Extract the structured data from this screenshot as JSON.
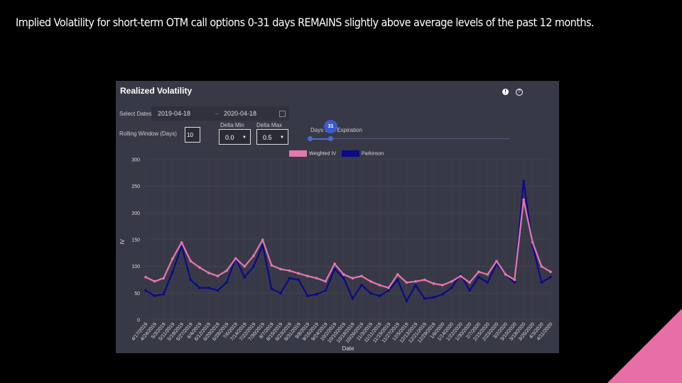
{
  "slide": {
    "title": "Implied Volatility for short-term OTM call options 0-31 days REMAINS slightly above average levels of the past 12 months."
  },
  "panel": {
    "title": "Realized Volatility",
    "info_icon": "info-icon",
    "help_icon": "question-icon",
    "select_dates_label": "Select Dates",
    "start_date": "2019-04-18",
    "end_date": "2020-04-18",
    "rolling_window_label": "Rolling Window (Days)",
    "rolling_window_value": "10",
    "delta_min_label": "Delta Min",
    "delta_min_value": "0.0",
    "delta_max_label": "Delta Max",
    "delta_max_value": "0.5",
    "days_expiration_label": "Days until Expiration",
    "days_expiration_value": "31"
  },
  "colors": {
    "weighted_iv": "#e877ad",
    "parkinson": "#0a0a8c",
    "panel_bg": "#383947",
    "accent": "#3d5bd0"
  },
  "chart_data": {
    "type": "line",
    "xlabel": "Date",
    "ylabel": "IV",
    "ylim": [
      0,
      300
    ],
    "yticks": [
      0,
      50,
      100,
      150,
      200,
      250,
      300
    ],
    "legend": [
      "Weighted IV",
      "Parkinson"
    ],
    "legend_position": "top-center",
    "grid": true,
    "x": [
      "4/17/2019",
      "4/24/2019",
      "5/3/2019",
      "5/11/2019",
      "5/19/2019",
      "5/27/2019",
      "6/4/2019",
      "6/12/2019",
      "6/20/2019",
      "6/28/2019",
      "7/6/2019",
      "7/14/2019",
      "7/22/2019",
      "7/30/2019",
      "8/7/2019",
      "8/15/2019",
      "8/23/2019",
      "8/31/2019",
      "9/8/2019",
      "9/16/2019",
      "9/24/2019",
      "10/2/2019",
      "10/10/2019",
      "10/18/2019",
      "10/26/2019",
      "11/3/2019",
      "11/11/2019",
      "11/19/2019",
      "11/27/2019",
      "12/5/2019",
      "12/13/2019",
      "12/21/2019",
      "12/29/2019",
      "1/6/2020",
      "1/14/2020",
      "1/22/2020",
      "1/30/2020",
      "2/7/2020",
      "2/15/2020",
      "2/23/2020",
      "3/2/2020",
      "3/10/2020",
      "3/18/2020",
      "3/26/2020",
      "4/3/2020",
      "4/11/2020"
    ],
    "series": [
      {
        "name": "Weighted IV",
        "values": [
          80,
          72,
          78,
          115,
          145,
          110,
          98,
          88,
          82,
          92,
          115,
          100,
          120,
          150,
          102,
          95,
          92,
          87,
          82,
          78,
          72,
          105,
          85,
          78,
          82,
          72,
          65,
          60,
          85,
          70,
          72,
          75,
          68,
          65,
          72,
          82,
          70,
          90,
          85,
          110,
          85,
          75,
          225,
          145,
          100,
          90
        ]
      },
      {
        "name": "Parkinson",
        "values": [
          55,
          45,
          48,
          90,
          138,
          75,
          60,
          60,
          55,
          70,
          115,
          80,
          100,
          140,
          58,
          50,
          78,
          75,
          45,
          48,
          55,
          95,
          78,
          40,
          65,
          50,
          45,
          55,
          75,
          35,
          65,
          40,
          42,
          48,
          60,
          85,
          55,
          80,
          70,
          105,
          85,
          70,
          260,
          140,
          70,
          80
        ]
      }
    ]
  }
}
